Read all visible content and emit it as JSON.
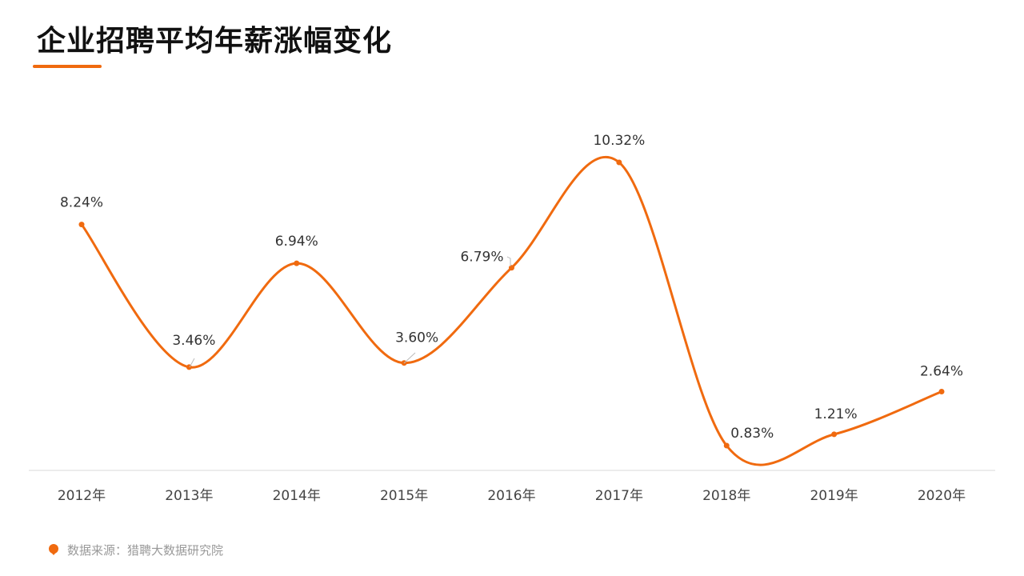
{
  "page": {
    "title": "企业招聘平均年薪涨幅变化",
    "source": "数据来源：猎聘大数据研究院"
  },
  "colors": {
    "accent": "#f06a0f",
    "axis": "#d9d9d9",
    "label": "#333333",
    "tick": "#444444",
    "source": "#9a9a9a"
  },
  "icons": {
    "source": "map-pin-icon"
  },
  "chart_data": {
    "type": "line",
    "smooth": true,
    "title": "企业招聘平均年薪涨幅变化",
    "categories": [
      "2012年",
      "2013年",
      "2014年",
      "2015年",
      "2016年",
      "2017年",
      "2018年",
      "2019年",
      "2020年"
    ],
    "series": [
      {
        "values": [
          8.24,
          3.46,
          6.94,
          3.6,
          6.79,
          10.32,
          0.83,
          1.21,
          2.64
        ],
        "labels": [
          "8.24%",
          "3.46%",
          "6.94%",
          "3.60%",
          "6.79%",
          "10.32%",
          "0.83%",
          "1.21%",
          "2.64%"
        ]
      }
    ],
    "xlabel": "",
    "ylabel": "",
    "ylim": [
      0,
      11
    ],
    "grid": false,
    "legend": "none"
  }
}
